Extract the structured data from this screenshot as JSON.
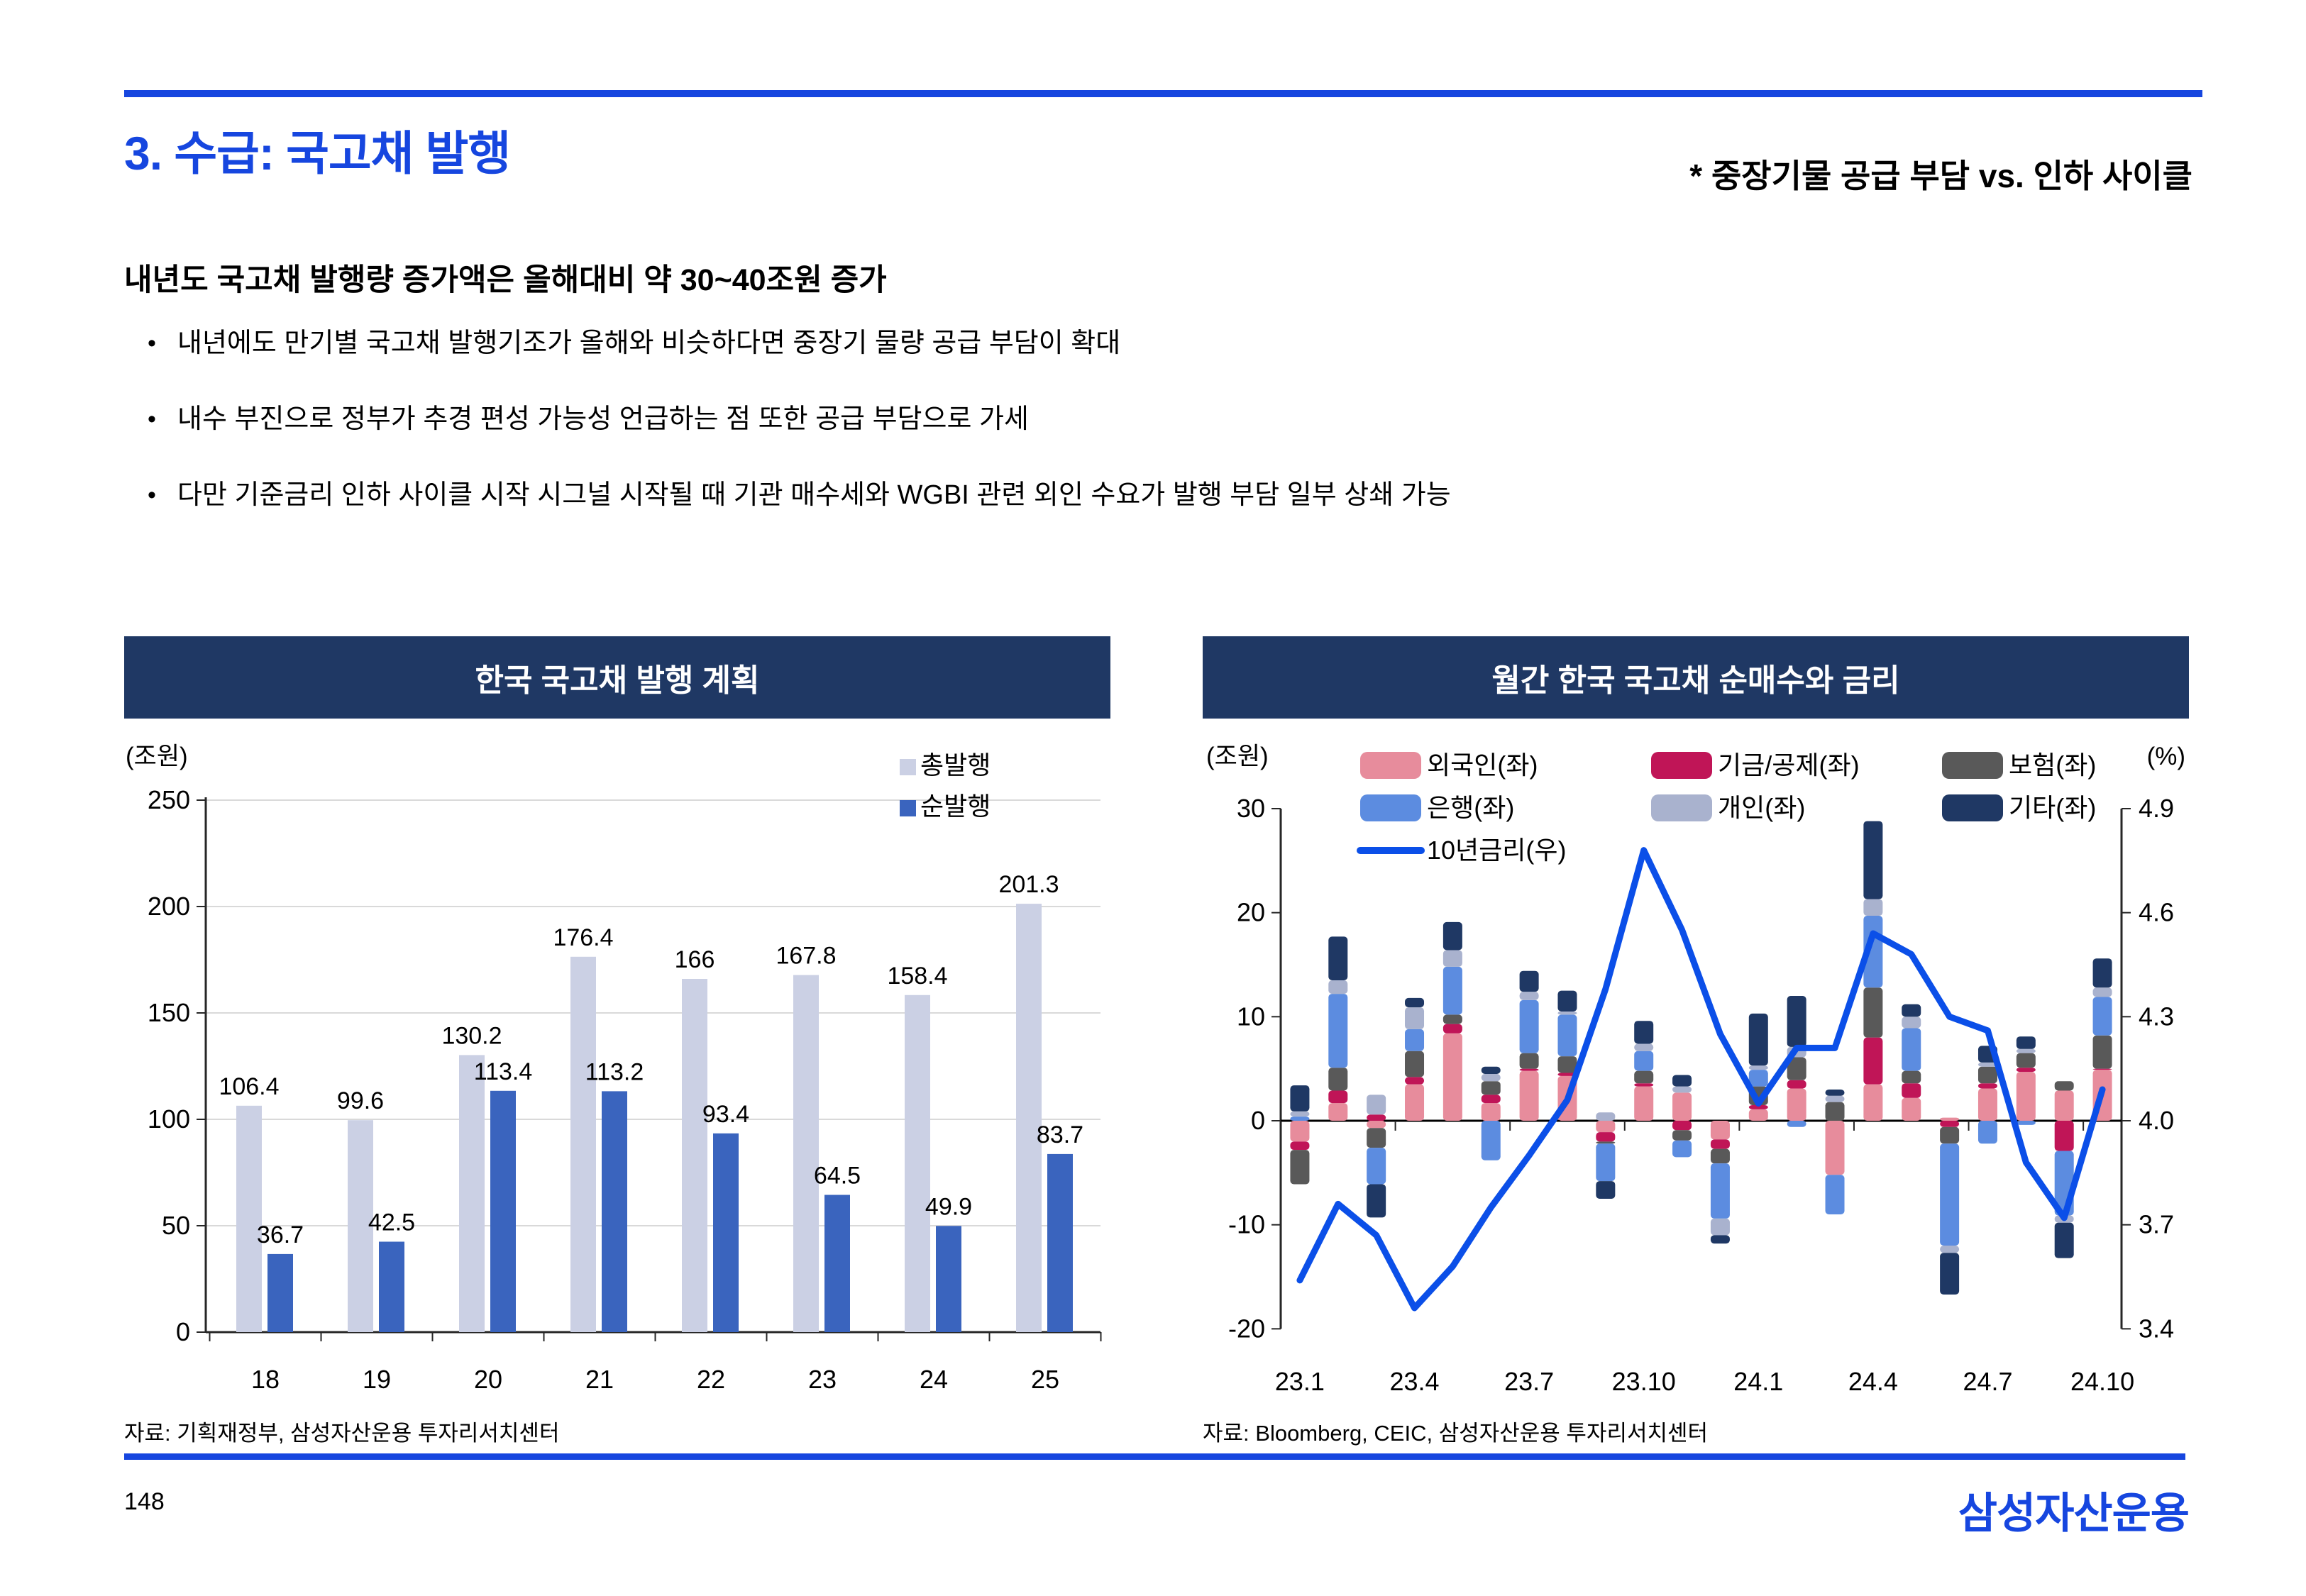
{
  "header": {
    "title": "3. 수급: 국고채 발행",
    "subtitle": "* 중장기물 공급 부담 vs. 인하 사이클"
  },
  "lead": "내년도 국고채 발행량 증가액은 올해대비 약 30~40조원 증가",
  "bullets": [
    "내년에도 만기별 국고채 발행기조가 올해와 비슷하다면 중장기 물량 공급 부담이 확대",
    "내수 부진으로 정부가 추경 편성 가능성 언급하는 점 또한 공급 부담으로 가세",
    "다만 기준금리 인하 사이클 시작 시그널 시작될 때 기관 매수세와 WGBI 관련 외인 수요가 발행 부담 일부 상쇄 가능"
  ],
  "sources": {
    "left": "자료: 기획재정부, 삼성자산운용 투자리서치센터",
    "right": "자료: Bloomberg, CEIC, 삼성자산운용 투자리서치센터"
  },
  "page": {
    "number": "148",
    "logo": "삼성자산운용"
  },
  "colors": {
    "accent_blue": "#1646DF",
    "banner_navy": "#1F3864",
    "gridline": "#D9D9D9",
    "axis": "#262626"
  },
  "chart_data": [
    {
      "type": "bar",
      "title": "한국 국고채 발행 계획",
      "unit": "(조원)",
      "categories": [
        "18",
        "19",
        "20",
        "21",
        "22",
        "23",
        "24",
        "25"
      ],
      "series": [
        {
          "name": "총발행",
          "color": "#CBD0E4",
          "values": [
            106.4,
            99.6,
            130.2,
            176.4,
            166,
            167.8,
            158.4,
            201.3
          ]
        },
        {
          "name": "순발행",
          "color": "#3A64BE",
          "values": [
            36.7,
            42.5,
            113.4,
            113.2,
            93.4,
            64.5,
            49.9,
            83.7
          ]
        }
      ],
      "ylim": [
        0,
        250
      ],
      "ytick_step": 50,
      "grid": true,
      "legend_position": "top-right"
    },
    {
      "type": "bar-line",
      "title": "월간 한국 국고채 순매수와 금리",
      "unit_left": "(조원)",
      "unit_right": "(%)",
      "categories": [
        "23.1",
        "23.2",
        "23.3",
        "23.4",
        "23.5",
        "23.6",
        "23.7",
        "23.8",
        "23.9",
        "23.10",
        "23.11",
        "23.12",
        "24.1",
        "24.2",
        "24.3",
        "24.4",
        "24.5",
        "24.6",
        "24.7",
        "24.8",
        "24.9",
        "24.10"
      ],
      "x_tick_every": 3,
      "bar_series": [
        {
          "name": "외국인(좌)",
          "color": "#E78C9C",
          "values": [
            -2,
            1.7,
            -0.7,
            3.5,
            8.4,
            1.7,
            4.8,
            4.3,
            -1.1,
            3.3,
            2.7,
            -1.8,
            1.1,
            3.1,
            -5.2,
            3.5,
            2.2,
            0.3,
            3.1,
            4.7,
            2.9,
            4.9
          ]
        },
        {
          "name": "기금/공제(좌)",
          "color": "#C01557",
          "values": [
            -0.8,
            1.2,
            0.6,
            0.7,
            0.9,
            0.8,
            0.2,
            0.3,
            -0.9,
            0.3,
            -0.9,
            -0.9,
            0.4,
            0.8,
            0,
            4.5,
            1.4,
            -0.6,
            0.5,
            0.4,
            -2.9,
            0.1
          ]
        },
        {
          "name": "보험(좌)",
          "color": "#595959",
          "values": [
            -3.3,
            2.2,
            -1.9,
            2.5,
            0.9,
            1.3,
            1.5,
            1.6,
            -0.2,
            1.2,
            -1,
            -1.4,
            1.8,
            2.2,
            1.8,
            4.8,
            1.2,
            -1.6,
            1.6,
            1.4,
            0.9,
            3.2
          ]
        },
        {
          "name": "은행(좌)",
          "color": "#5C8CE0",
          "values": [
            0.4,
            7.1,
            -3.5,
            2.1,
            4.6,
            -3.8,
            5.1,
            4,
            -3.6,
            1.9,
            -1.6,
            -5.3,
            1.6,
            -0.6,
            -3.8,
            6.9,
            4.1,
            -9.8,
            -2.2,
            -0.4,
            -6.2,
            3.7
          ]
        },
        {
          "name": "개인(좌)",
          "color": "#A9B2CE",
          "values": [
            0.5,
            1.3,
            1.9,
            2.1,
            1.6,
            0.7,
            0.8,
            0.3,
            0.8,
            0.7,
            0.6,
            -1.6,
            0.4,
            1,
            0.6,
            1.6,
            1.1,
            -0.7,
            0.4,
            0.4,
            -0.7,
            0.9
          ]
        },
        {
          "name": "기타(좌)",
          "color": "#1F3864",
          "values": [
            2.5,
            4.2,
            -3.2,
            0.9,
            2.7,
            0.7,
            2,
            2,
            -1.7,
            2.2,
            1.1,
            -0.8,
            5,
            4.9,
            0.6,
            7.5,
            1.2,
            -4,
            1.6,
            1.2,
            -3.4,
            2.8
          ]
        }
      ],
      "line_series": {
        "name": "10년금리(우)",
        "color": "#0B4FE8",
        "axis": "right",
        "values": [
          3.54,
          3.76,
          3.67,
          3.46,
          3.58,
          3.75,
          3.9,
          4.06,
          4.38,
          4.78,
          4.55,
          4.25,
          4.05,
          4.21,
          4.21,
          4.54,
          4.48,
          4.3,
          4.26,
          3.88,
          3.72,
          4.09
        ]
      },
      "ylim_left": [
        -20,
        30
      ],
      "ytick_step_left": 10,
      "ylim_right": [
        3.4,
        4.9
      ],
      "ytick_step_right": 0.3,
      "grid": false
    }
  ]
}
